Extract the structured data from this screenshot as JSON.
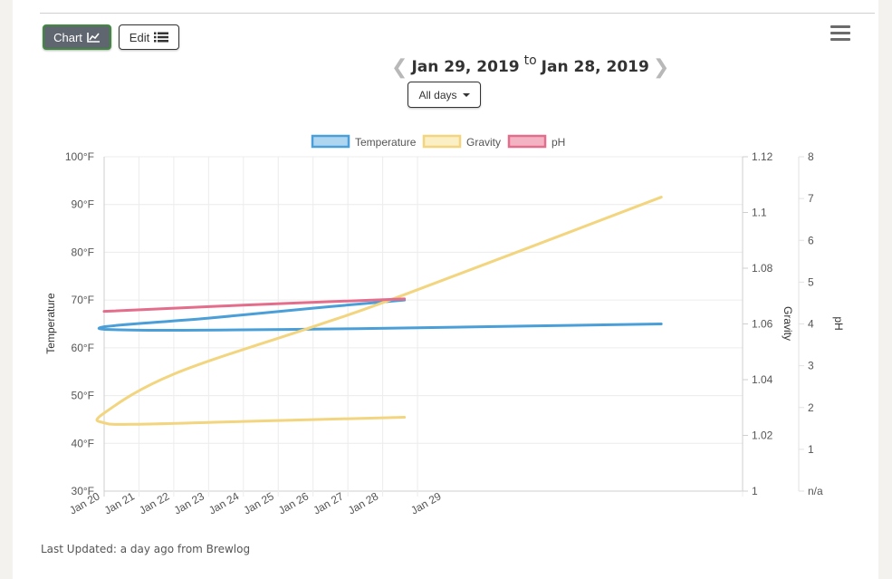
{
  "toolbar": {
    "chart_label": "Chart",
    "edit_label": "Edit",
    "chart_icon": "line-chart-icon",
    "edit_icon": "list-icon",
    "menu_icon": "hamburger-menu-icon"
  },
  "date_range": {
    "start": "Jan 29, 2019",
    "separator": "to",
    "end": "Jan 28, 2019",
    "prev_icon": "chevron-left-icon",
    "next_icon": "chevron-right-icon"
  },
  "filter": {
    "label": "All days"
  },
  "footer": {
    "text": "Last Updated: a day ago from Brewlog"
  },
  "colors": {
    "temperature": "#4a9fd8",
    "gravity": "#f2d57e",
    "ph": "#e46d8c"
  },
  "chart_data": {
    "type": "line",
    "legend": {
      "position": "top",
      "entries": [
        "Temperature",
        "Gravity",
        "pH"
      ]
    },
    "grid": true,
    "x_ticks": [
      "Jan 20",
      "Jan 21",
      "Jan 22",
      "Jan 23",
      "Jan 24",
      "Jan 25",
      "Jan 26",
      "Jan 27",
      "Jan 28",
      "Jan 29"
    ],
    "axes": {
      "temperature": {
        "label": "Temperature",
        "range": [
          30,
          100
        ],
        "ticks": [
          "100°F",
          "90°F",
          "80°F",
          "70°F",
          "60°F",
          "50°F",
          "40°F",
          "30°F"
        ]
      },
      "gravity": {
        "label": "Gravity",
        "range": [
          1,
          1.12
        ],
        "ticks": [
          "1.12",
          "1.1",
          "1.08",
          "1.06",
          "1.04",
          "1.02",
          "1"
        ]
      },
      "ph": {
        "label": "pH",
        "range": [
          0,
          8
        ],
        "ticks": [
          "8",
          "7",
          "6",
          "5",
          "4",
          "3",
          "2",
          "1",
          "n/a"
        ]
      }
    },
    "series": [
      {
        "name": "Temperature",
        "axis": "temperature",
        "points": [
          [
            "Jan 28 15:00",
            70
          ],
          [
            "Jan 26 00:00",
            68.3
          ],
          [
            "Jan 23 00:00",
            66.2
          ],
          [
            "Jan 20 00:00",
            64.4
          ],
          [
            "Jan 21 00:00",
            63.7
          ],
          [
            "Jan 26 00:00",
            63.9
          ],
          [
            "Jan 29 00:00",
            64.2
          ],
          [
            "Feb 05 00:00",
            65.0
          ]
        ]
      },
      {
        "name": "Gravity",
        "axis": "gravity",
        "points": [
          [
            "Jan 28 15:00",
            1.0265
          ],
          [
            "Jan 24 00:00",
            1.025
          ],
          [
            "Jan 21 00:00",
            1.024
          ],
          [
            "Jan 20 00:00",
            1.0245
          ],
          [
            "Jan 20 00:00",
            1.028
          ],
          [
            "Jan 22 00:00",
            1.042
          ],
          [
            "Jan 26 00:00",
            1.059
          ],
          [
            "Jan 28 15:00",
            1.0705
          ],
          [
            "Feb 05 00:00",
            1.1055
          ]
        ]
      },
      {
        "name": "pH",
        "axis": "ph",
        "points": [
          [
            "Jan 20 00:00",
            4.3
          ],
          [
            "Jan 24 00:00",
            4.45
          ],
          [
            "Jan 28 15:00",
            4.6
          ]
        ]
      }
    ]
  }
}
